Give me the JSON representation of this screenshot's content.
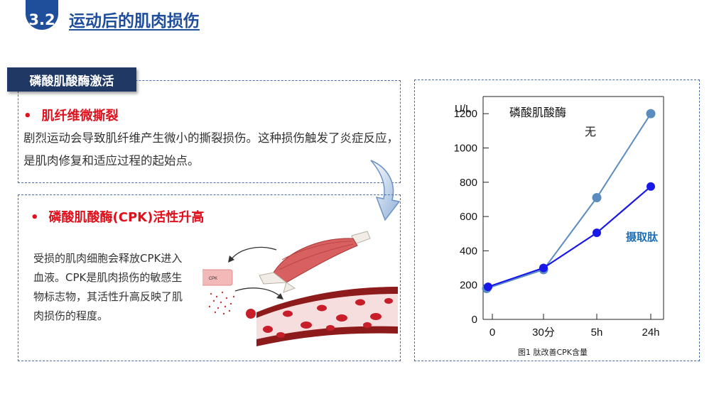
{
  "header": {
    "section_number": "3.2",
    "title": "运动后的肌肉损伤"
  },
  "tag": "磷酸肌酸酶激活",
  "block1": {
    "bullet": "•",
    "title": "肌纤维微撕裂",
    "text": "剧烈运动会导致肌纤维产生微小的撕裂损伤。这种损伤触发了炎症反应，是肌肉修复和适应过程的起始点。"
  },
  "block2": {
    "bullet": "•",
    "title": "磷酸肌酸酶(CPK)活性升高",
    "text": "受损的肌肉细胞会释放CPK进入血液。CPK是肌肉损伤的敏感生物标志物，其活性升高反映了肌肉损伤的程度。",
    "illustration_label": "CPK"
  },
  "chart_data": {
    "type": "line",
    "title": "磷酸肌酸酶",
    "ylabel": "U/L",
    "categories": [
      "0",
      "30分",
      "5h",
      "24h"
    ],
    "yticks": [
      0,
      200,
      400,
      600,
      800,
      1000,
      1200
    ],
    "ylim": [
      0,
      1300
    ],
    "series": [
      {
        "name": "无",
        "color": "#5b8cc0",
        "values": [
          180,
          290,
          710,
          1200
        ]
      },
      {
        "name": "摄取肽",
        "color": "#1818e8",
        "values": [
          190,
          300,
          505,
          775
        ]
      }
    ],
    "caption": "图1 肽改善CPK含量"
  }
}
